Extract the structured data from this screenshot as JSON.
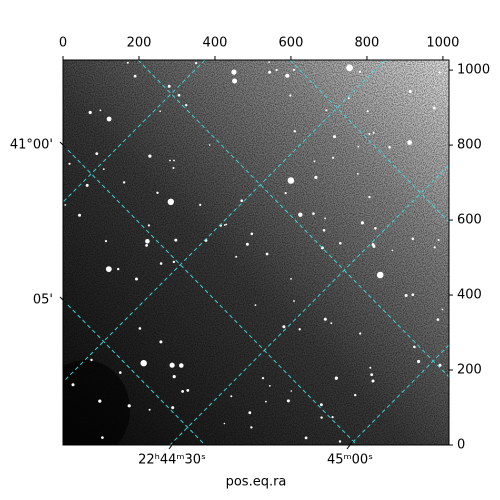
{
  "chart_data": {
    "type": "image",
    "x_label": "pos.eq.ra",
    "xlim": [
      0,
      1016
    ],
    "xticks": [
      0,
      200,
      400,
      600,
      800,
      1000
    ],
    "ylim": [
      0,
      1027
    ],
    "yticks": [
      0,
      200,
      400,
      600,
      800,
      1000
    ],
    "ra_tick_labels": [
      "22ʰ44ᵐ30ˢ",
      "45ᵐ00ˢ"
    ],
    "dec_tick_labels": [
      "41°00'",
      "05'"
    ],
    "grid_color": "#3fe0e0"
  }
}
